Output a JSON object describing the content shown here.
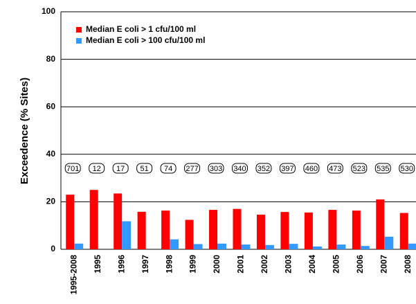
{
  "chart_data": {
    "type": "bar",
    "y_label": "Exceedence (% Sites)",
    "categories": [
      "1995-2008",
      "1995",
      "1996",
      "1997",
      "1998",
      "1999",
      "2000",
      "2001",
      "2002",
      "2003",
      "2004",
      "2005",
      "2006",
      "2007",
      "2008"
    ],
    "series": [
      {
        "name": "Median E coli > 1 cfu/100 ml",
        "color": "#ff0000",
        "values": [
          23,
          25,
          23.5,
          15.8,
          16.3,
          12.4,
          16.6,
          17,
          14.6,
          15.7,
          15.5,
          16.6,
          16.3,
          21,
          15.3
        ]
      },
      {
        "name": "Median E coli > 100 cfu/100 ml",
        "color": "#3399ff",
        "values": [
          2.4,
          0,
          11.8,
          0,
          4.2,
          2.2,
          2.4,
          2,
          1.8,
          2.3,
          1.2,
          2,
          1.4,
          5.3,
          2.4
        ]
      }
    ],
    "sample_counts": [
      701,
      12,
      17,
      51,
      74,
      277,
      303,
      340,
      352,
      397,
      460,
      473,
      523,
      535,
      530
    ],
    "ylim": [
      0,
      100
    ],
    "yticks": [
      0,
      20,
      40,
      60,
      80,
      100
    ],
    "grid": true,
    "legend": "top-left"
  }
}
